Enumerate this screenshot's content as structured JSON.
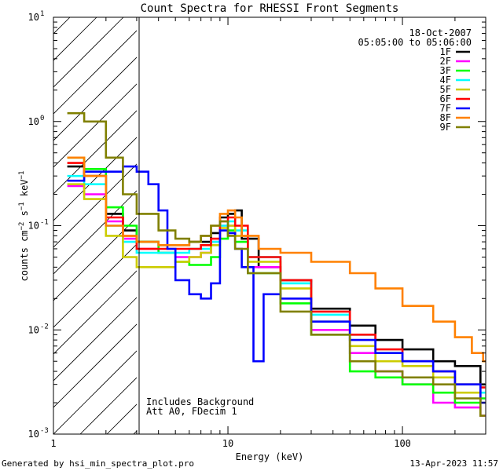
{
  "chart_data": {
    "type": "line",
    "title": "Count Spectra for RHESSI Front Segments",
    "xlabel": "Energy (keV)",
    "ylabel": "counts cm^-2 s^-1 keV^-1",
    "ylabel_parts": {
      "base": "counts cm",
      "sup1": "−2",
      "mid": " s",
      "sup2": "−1",
      "tail": " keV",
      "sup3": "−1"
    },
    "xscale": "log",
    "yscale": "log",
    "xlim": [
      1,
      300
    ],
    "ylim": [
      0.001,
      10
    ],
    "x_tick_labels": [
      {
        "value": 1,
        "label": "1"
      },
      {
        "value": 10,
        "label": "10"
      },
      {
        "value": 100,
        "label": "100"
      }
    ],
    "y_tick_labels": [
      {
        "exp": -3,
        "base": "10",
        "sup": "-3"
      },
      {
        "exp": -2,
        "base": "10",
        "sup": "-2"
      },
      {
        "exp": -1,
        "base": "10",
        "sup": "-1"
      },
      {
        "exp": 0,
        "base": "10",
        "sup": "0"
      },
      {
        "exp": 1,
        "base": "10",
        "sup": "1"
      }
    ],
    "date_label": "18-Oct-2007",
    "time_range": "05:05:00 to 05:06:00",
    "hatched_region": {
      "from": 1,
      "to": 3
    },
    "annotations": [
      "Includes Background",
      "Att A0, FDecim 1"
    ],
    "legend_position": "top-right",
    "series": [
      {
        "name": "1F",
        "color": "#000000",
        "points": [
          [
            1.2,
            0.37
          ],
          [
            1.5,
            0.3
          ],
          [
            2,
            0.13
          ],
          [
            2.5,
            0.09
          ],
          [
            3,
            0.07
          ],
          [
            4,
            0.065
          ],
          [
            5,
            0.065
          ],
          [
            6,
            0.07
          ],
          [
            7,
            0.07
          ],
          [
            8,
            0.085
          ],
          [
            9,
            0.12
          ],
          [
            10,
            0.13
          ],
          [
            11,
            0.14
          ],
          [
            12,
            0.075
          ],
          [
            15,
            0.04
          ],
          [
            20,
            0.03
          ],
          [
            30,
            0.016
          ],
          [
            50,
            0.011
          ],
          [
            70,
            0.008
          ],
          [
            100,
            0.0065
          ],
          [
            150,
            0.005
          ],
          [
            200,
            0.0045
          ],
          [
            280,
            0.003
          ]
        ]
      },
      {
        "name": "2F",
        "color": "#ff00ff",
        "points": [
          [
            1.2,
            0.24
          ],
          [
            1.5,
            0.2
          ],
          [
            2,
            0.11
          ],
          [
            2.5,
            0.075
          ],
          [
            3,
            0.06
          ],
          [
            4,
            0.055
          ],
          [
            5,
            0.05
          ],
          [
            6,
            0.05
          ],
          [
            7,
            0.055
          ],
          [
            8,
            0.07
          ],
          [
            9,
            0.1
          ],
          [
            10,
            0.1
          ],
          [
            11,
            0.08
          ],
          [
            13,
            0.04
          ],
          [
            20,
            0.02
          ],
          [
            30,
            0.01
          ],
          [
            50,
            0.006
          ],
          [
            70,
            0.004
          ],
          [
            100,
            0.003
          ],
          [
            150,
            0.002
          ],
          [
            200,
            0.0018
          ],
          [
            280,
            0.0015
          ]
        ]
      },
      {
        "name": "3F",
        "color": "#00ff00",
        "points": [
          [
            1.2,
            0.45
          ],
          [
            1.5,
            0.35
          ],
          [
            2,
            0.15
          ],
          [
            2.5,
            0.1
          ],
          [
            3,
            0.07
          ],
          [
            4,
            0.055
          ],
          [
            5,
            0.045
          ],
          [
            6,
            0.042
          ],
          [
            7,
            0.042
          ],
          [
            8,
            0.05
          ],
          [
            9,
            0.075
          ],
          [
            10,
            0.09
          ],
          [
            11,
            0.07
          ],
          [
            13,
            0.035
          ],
          [
            20,
            0.018
          ],
          [
            30,
            0.009
          ],
          [
            50,
            0.004
          ],
          [
            70,
            0.0035
          ],
          [
            100,
            0.003
          ],
          [
            150,
            0.0025
          ],
          [
            200,
            0.002
          ],
          [
            280,
            0.0022
          ]
        ]
      },
      {
        "name": "4F",
        "color": "#00ffff",
        "points": [
          [
            1.2,
            0.3
          ],
          [
            1.5,
            0.25
          ],
          [
            2,
            0.1
          ],
          [
            2.5,
            0.07
          ],
          [
            3,
            0.055
          ],
          [
            4,
            0.055
          ],
          [
            5,
            0.055
          ],
          [
            6,
            0.06
          ],
          [
            7,
            0.06
          ],
          [
            8,
            0.07
          ],
          [
            9,
            0.1
          ],
          [
            10,
            0.11
          ],
          [
            11,
            0.09
          ],
          [
            13,
            0.05
          ],
          [
            20,
            0.028
          ],
          [
            30,
            0.014
          ],
          [
            50,
            0.009
          ],
          [
            70,
            0.006
          ],
          [
            100,
            0.005
          ],
          [
            150,
            0.004
          ],
          [
            200,
            0.003
          ],
          [
            280,
            0.0025
          ]
        ]
      },
      {
        "name": "5F",
        "color": "#cccc00",
        "points": [
          [
            1.2,
            0.25
          ],
          [
            1.5,
            0.18
          ],
          [
            2,
            0.08
          ],
          [
            2.5,
            0.05
          ],
          [
            3,
            0.04
          ],
          [
            4,
            0.04
          ],
          [
            5,
            0.045
          ],
          [
            6,
            0.05
          ],
          [
            7,
            0.055
          ],
          [
            8,
            0.065
          ],
          [
            9,
            0.095
          ],
          [
            10,
            0.1
          ],
          [
            11,
            0.08
          ],
          [
            13,
            0.045
          ],
          [
            20,
            0.025
          ],
          [
            30,
            0.012
          ],
          [
            50,
            0.007
          ],
          [
            70,
            0.005
          ],
          [
            100,
            0.0045
          ],
          [
            150,
            0.0035
          ],
          [
            200,
            0.0025
          ],
          [
            280,
            0.002
          ]
        ]
      },
      {
        "name": "6F",
        "color": "#ff0000",
        "points": [
          [
            1.2,
            0.4
          ],
          [
            1.5,
            0.3
          ],
          [
            2,
            0.12
          ],
          [
            2.5,
            0.08
          ],
          [
            3,
            0.06
          ],
          [
            4,
            0.06
          ],
          [
            5,
            0.06
          ],
          [
            6,
            0.06
          ],
          [
            7,
            0.065
          ],
          [
            8,
            0.075
          ],
          [
            9,
            0.11
          ],
          [
            10,
            0.12
          ],
          [
            11,
            0.1
          ],
          [
            13,
            0.05
          ],
          [
            20,
            0.03
          ],
          [
            30,
            0.015
          ],
          [
            50,
            0.009
          ],
          [
            70,
            0.0065
          ],
          [
            100,
            0.005
          ],
          [
            150,
            0.004
          ],
          [
            200,
            0.003
          ],
          [
            280,
            0.0028
          ]
        ]
      },
      {
        "name": "7F",
        "color": "#0000ff",
        "points": [
          [
            1.2,
            0.27
          ],
          [
            1.5,
            0.33
          ],
          [
            2,
            0.33
          ],
          [
            2.5,
            0.37
          ],
          [
            3,
            0.33
          ],
          [
            3.5,
            0.25
          ],
          [
            4,
            0.14
          ],
          [
            4.5,
            0.06
          ],
          [
            5,
            0.03
          ],
          [
            6,
            0.022
          ],
          [
            7,
            0.02
          ],
          [
            8,
            0.028
          ],
          [
            9,
            0.09
          ],
          [
            10,
            0.085
          ],
          [
            11,
            0.06
          ],
          [
            12,
            0.04
          ],
          [
            14,
            0.005
          ],
          [
            16,
            0.022
          ],
          [
            20,
            0.02
          ],
          [
            30,
            0.012
          ],
          [
            50,
            0.008
          ],
          [
            70,
            0.006
          ],
          [
            100,
            0.005
          ],
          [
            150,
            0.004
          ],
          [
            200,
            0.003
          ],
          [
            280,
            0.002
          ]
        ]
      },
      {
        "name": "8F",
        "color": "#ff8000",
        "points": [
          [
            1.2,
            0.45
          ],
          [
            1.5,
            0.3
          ],
          [
            2,
            0.1
          ],
          [
            2.5,
            0.08
          ],
          [
            3,
            0.07
          ],
          [
            4,
            0.065
          ],
          [
            5,
            0.065
          ],
          [
            6,
            0.07
          ],
          [
            7,
            0.08
          ],
          [
            8,
            0.1
          ],
          [
            9,
            0.13
          ],
          [
            10,
            0.14
          ],
          [
            11,
            0.12
          ],
          [
            12,
            0.08
          ],
          [
            15,
            0.06
          ],
          [
            20,
            0.055
          ],
          [
            30,
            0.045
          ],
          [
            50,
            0.035
          ],
          [
            70,
            0.025
          ],
          [
            100,
            0.017
          ],
          [
            150,
            0.012
          ],
          [
            200,
            0.0085
          ],
          [
            250,
            0.006
          ],
          [
            290,
            0.005
          ]
        ]
      },
      {
        "name": "9F",
        "color": "#808000",
        "points": [
          [
            1.2,
            1.2
          ],
          [
            1.5,
            1.0
          ],
          [
            2,
            0.45
          ],
          [
            2.5,
            0.2
          ],
          [
            3,
            0.13
          ],
          [
            4,
            0.09
          ],
          [
            5,
            0.075
          ],
          [
            6,
            0.07
          ],
          [
            7,
            0.08
          ],
          [
            8,
            0.1
          ],
          [
            9,
            0.11
          ],
          [
            10,
            0.08
          ],
          [
            11,
            0.06
          ],
          [
            13,
            0.035
          ],
          [
            20,
            0.015
          ],
          [
            30,
            0.009
          ],
          [
            50,
            0.005
          ],
          [
            70,
            0.004
          ],
          [
            100,
            0.0035
          ],
          [
            150,
            0.003
          ],
          [
            200,
            0.0022
          ],
          [
            280,
            0.0015
          ]
        ]
      }
    ]
  },
  "footer": {
    "generated_by": "Generated by hsi_min_spectra_plot.pro",
    "timestamp": "13-Apr-2023 11:57"
  }
}
